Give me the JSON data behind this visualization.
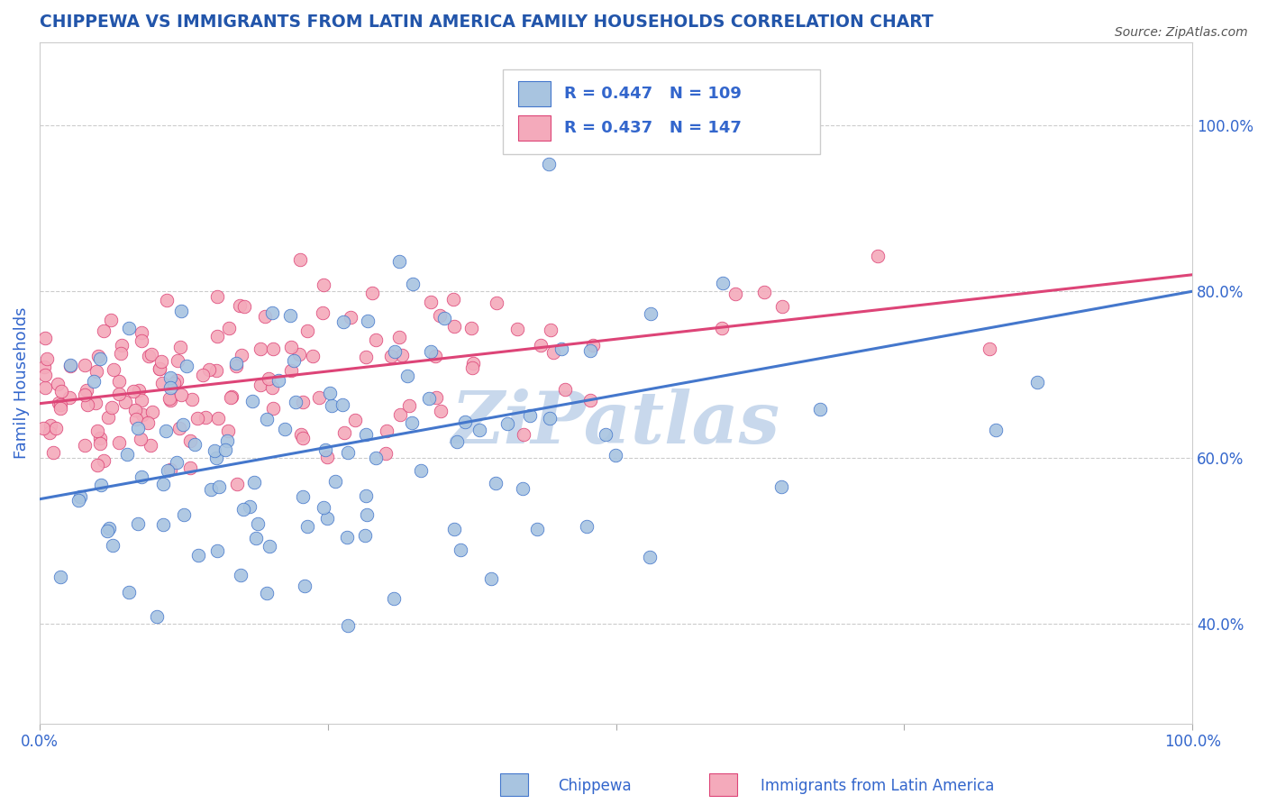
{
  "title": "CHIPPEWA VS IMMIGRANTS FROM LATIN AMERICA FAMILY HOUSEHOLDS CORRELATION CHART",
  "source_text": "Source: ZipAtlas.com",
  "ylabel": "Family Households",
  "blue_R": 0.447,
  "blue_N": 109,
  "pink_R": 0.437,
  "pink_N": 147,
  "blue_color": "#A8C4E0",
  "pink_color": "#F4AABB",
  "blue_line_color": "#4477CC",
  "pink_line_color": "#DD4477",
  "title_color": "#2255AA",
  "axis_label_color": "#3366CC",
  "watermark_color": "#C8D8EC",
  "legend_label_blue": "Chippewa",
  "legend_label_pink": "Immigrants from Latin America",
  "xlim": [
    0.0,
    1.0
  ],
  "ylim": [
    0.28,
    1.1
  ],
  "blue_slope": 0.25,
  "blue_intercept": 0.55,
  "pink_slope": 0.155,
  "pink_intercept": 0.665,
  "ytick_positions": [
    0.4,
    0.6,
    0.8,
    1.0
  ],
  "ytick_labels": [
    "40.0%",
    "60.0%",
    "80.0%",
    "100.0%"
  ],
  "xtick_positions": [
    0.0,
    0.25,
    0.5,
    0.75,
    1.0
  ],
  "xtick_labels": [
    "0.0%",
    "",
    "",
    "",
    "100.0%"
  ],
  "seed_blue": 42,
  "seed_pink": 7,
  "figsize": [
    14.06,
    8.92
  ],
  "dpi": 100
}
